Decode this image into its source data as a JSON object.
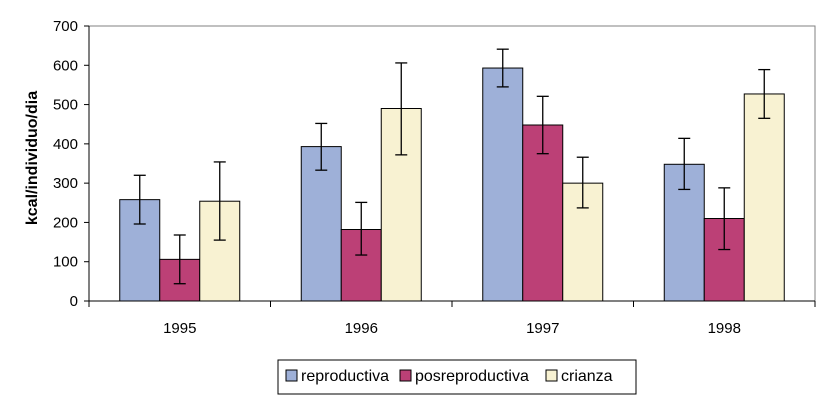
{
  "chart_data": {
    "type": "bar",
    "title": "",
    "xlabel": "",
    "ylabel": "kcal/individuo/dia",
    "ylim": [
      0,
      700
    ],
    "yticks": [
      0,
      100,
      200,
      300,
      400,
      500,
      600,
      700
    ],
    "grid": false,
    "legend_position": "bottom",
    "categories": [
      "1995",
      "1996",
      "1997",
      "1998"
    ],
    "series": [
      {
        "name": "reproductiva",
        "color": "#9EB0D8",
        "values": [
          258,
          393,
          593,
          348
        ],
        "error_low": [
          196,
          333,
          545,
          284
        ],
        "error_high": [
          320,
          452,
          641,
          414
        ]
      },
      {
        "name": "posreproductiva",
        "color": "#BC4076",
        "values": [
          106,
          182,
          448,
          210
        ],
        "error_low": [
          44,
          117,
          375,
          131
        ],
        "error_high": [
          168,
          251,
          521,
          288
        ]
      },
      {
        "name": "crianza",
        "color": "#F8F2D2",
        "values": [
          254,
          490,
          300,
          527
        ],
        "error_low": [
          155,
          372,
          237,
          465
        ],
        "error_high": [
          354,
          606,
          366,
          589
        ]
      }
    ]
  }
}
